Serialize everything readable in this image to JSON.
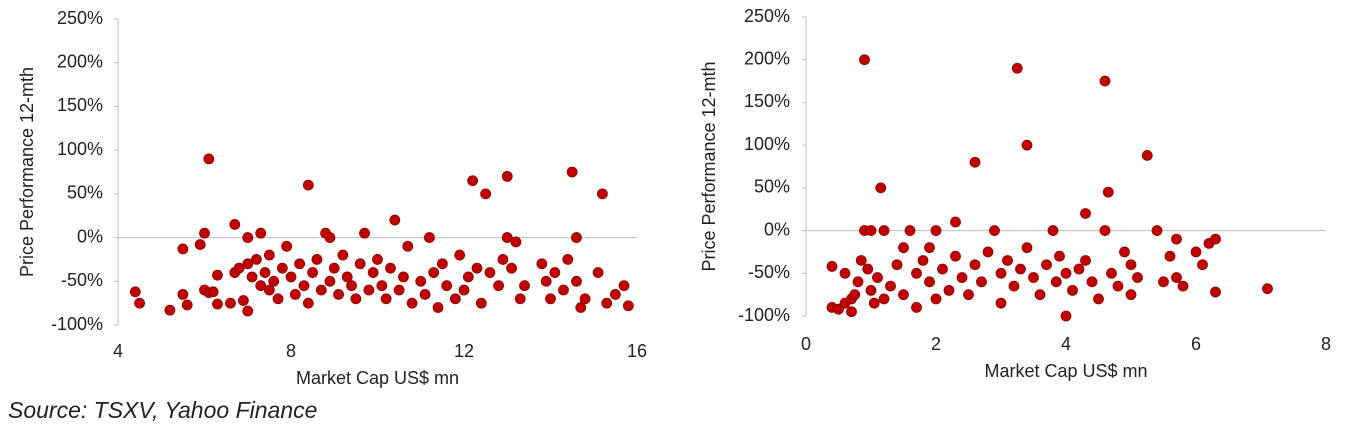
{
  "source": "Source: TSXV, Yahoo Finance",
  "chart_data": [
    {
      "type": "scatter",
      "xlabel": "Market Cap US$ mn",
      "ylabel": "Price Performance 12-mth",
      "color": "#c00000",
      "xlim": [
        4,
        16
      ],
      "xticks": [
        4,
        8,
        12,
        16
      ],
      "ylim": [
        -100,
        250
      ],
      "yticks": [
        {
          "value": -100,
          "label": "-100%"
        },
        {
          "value": -50,
          "label": "-50%"
        },
        {
          "value": 0,
          "label": "0%"
        },
        {
          "value": 50,
          "label": "50%"
        },
        {
          "value": 100,
          "label": "100%"
        },
        {
          "value": 150,
          "label": "150%"
        },
        {
          "value": 200,
          "label": "200%"
        },
        {
          "value": 250,
          "label": "250%"
        }
      ],
      "x": [
        4.4,
        4.5,
        5.2,
        5.5,
        5.5,
        5.6,
        5.9,
        6.0,
        6.0,
        6.1,
        6.1,
        6.2,
        6.3,
        6.3,
        6.6,
        6.7,
        6.7,
        6.8,
        6.9,
        7.0,
        7.0,
        7.0,
        7.1,
        7.2,
        7.3,
        7.3,
        7.4,
        7.5,
        7.5,
        7.6,
        7.7,
        7.8,
        7.9,
        8.0,
        8.1,
        8.2,
        8.3,
        8.4,
        8.4,
        8.5,
        8.6,
        8.7,
        8.8,
        8.9,
        8.9,
        9.0,
        9.1,
        9.2,
        9.3,
        9.4,
        9.5,
        9.6,
        9.7,
        9.8,
        9.9,
        10.0,
        10.1,
        10.2,
        10.4,
        10.3,
        10.5,
        10.6,
        10.7,
        10.8,
        11.0,
        11.1,
        11.2,
        11.3,
        11.4,
        11.5,
        11.6,
        11.8,
        11.9,
        12.0,
        12.1,
        12.2,
        12.3,
        12.4,
        12.5,
        12.6,
        12.8,
        12.9,
        13.0,
        13.0,
        13.1,
        13.2,
        13.3,
        13.4,
        13.8,
        13.9,
        14.0,
        14.1,
        14.3,
        14.4,
        14.5,
        14.6,
        14.6,
        14.7,
        14.8,
        15.1,
        15.2,
        15.3,
        15.5,
        15.7,
        15.8
      ],
      "values": [
        -62,
        -75,
        -83,
        -65,
        -13,
        -77,
        -8,
        5,
        -60,
        90,
        -63,
        -62,
        -76,
        -43,
        -75,
        15,
        -40,
        -35,
        -72,
        0,
        -30,
        -84,
        -45,
        -25,
        -55,
        5,
        -40,
        -60,
        -20,
        -50,
        -70,
        -35,
        -10,
        -45,
        -65,
        -30,
        -55,
        60,
        -75,
        -40,
        -25,
        -60,
        5,
        0,
        -50,
        -35,
        -65,
        -20,
        -45,
        -55,
        -70,
        -30,
        5,
        -60,
        -40,
        -25,
        -55,
        -70,
        20,
        -35,
        -60,
        -45,
        -10,
        -75,
        -50,
        -65,
        0,
        -40,
        -80,
        -30,
        -55,
        -70,
        -20,
        -60,
        -45,
        65,
        -35,
        -75,
        50,
        -40,
        -55,
        -25,
        70,
        0,
        -35,
        -5,
        -70,
        -55,
        -30,
        -50,
        -70,
        -40,
        -60,
        -25,
        75,
        0,
        -50,
        -80,
        -70,
        -40,
        50,
        -75,
        -65,
        -55,
        -78
      ]
    },
    {
      "type": "scatter",
      "xlabel": "Market Cap US$ mn",
      "ylabel": "Price Performance 12-mth",
      "color": "#c00000",
      "xlim": [
        0,
        8
      ],
      "xticks": [
        0,
        2,
        4,
        6,
        8
      ],
      "ylim": [
        -100,
        250
      ],
      "yticks": [
        {
          "value": -100,
          "label": "-100%"
        },
        {
          "value": -50,
          "label": "-50%"
        },
        {
          "value": 0,
          "label": "0%"
        },
        {
          "value": 50,
          "label": "50%"
        },
        {
          "value": 100,
          "label": "100%"
        },
        {
          "value": 150,
          "label": "150%"
        },
        {
          "value": 200,
          "label": "200%"
        },
        {
          "value": 250,
          "label": "250%"
        }
      ],
      "x": [
        0.4,
        0.4,
        0.5,
        0.6,
        0.6,
        0.7,
        0.7,
        0.75,
        0.8,
        0.85,
        0.9,
        0.9,
        0.95,
        1.0,
        1.0,
        1.05,
        1.1,
        1.15,
        1.2,
        1.2,
        1.3,
        1.4,
        1.5,
        1.5,
        1.6,
        1.7,
        1.7,
        1.8,
        1.9,
        1.9,
        2.0,
        2.0,
        2.1,
        2.2,
        2.3,
        2.3,
        2.4,
        2.5,
        2.6,
        2.6,
        2.7,
        2.8,
        2.9,
        3.0,
        3.0,
        3.1,
        3.2,
        3.25,
        3.3,
        3.4,
        3.4,
        3.5,
        3.6,
        3.7,
        3.8,
        3.85,
        3.9,
        4.0,
        4.0,
        4.1,
        4.2,
        4.3,
        4.3,
        4.4,
        4.5,
        4.6,
        4.6,
        4.65,
        4.7,
        4.8,
        4.9,
        5.0,
        5.0,
        5.1,
        5.25,
        5.4,
        5.5,
        5.6,
        5.7,
        5.7,
        5.8,
        6.0,
        6.1,
        6.2,
        6.3,
        6.3,
        7.1
      ],
      "values": [
        -42,
        -90,
        -92,
        -85,
        -50,
        -80,
        -95,
        -75,
        -60,
        -35,
        200,
        0,
        -45,
        -70,
        0,
        -85,
        -55,
        50,
        0,
        -80,
        -65,
        -40,
        -75,
        -20,
        0,
        -50,
        -90,
        -35,
        -60,
        -20,
        -80,
        0,
        -45,
        -70,
        10,
        -30,
        -55,
        -75,
        80,
        -40,
        -60,
        -25,
        0,
        -50,
        -85,
        -35,
        -65,
        190,
        -45,
        100,
        -20,
        -55,
        -75,
        -40,
        0,
        -60,
        -30,
        -100,
        -50,
        -70,
        -45,
        20,
        -35,
        -60,
        -80,
        175,
        0,
        45,
        -50,
        -65,
        -25,
        -40,
        -75,
        -55,
        88,
        0,
        -60,
        -30,
        -10,
        -55,
        -65,
        -25,
        -40,
        -15,
        -10,
        -72,
        -68
      ]
    }
  ]
}
